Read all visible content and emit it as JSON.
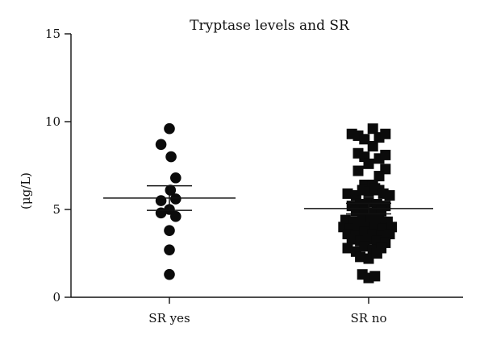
{
  "chart_data": {
    "type": "scatter",
    "title": "Tryptase levels and SR",
    "xlabel": "",
    "ylabel": "(μg/L)",
    "ylim": [
      0,
      15
    ],
    "yticks": [
      0,
      5,
      10,
      15
    ],
    "grid": false,
    "categories": [
      "SR yes",
      "SR no"
    ],
    "series": [
      {
        "category": "SR yes",
        "marker": "circle",
        "mean": 5.65,
        "error_upper": 6.35,
        "error_lower": 4.95,
        "points": [
          {
            "x": 0.0,
            "y": 9.6
          },
          {
            "x": -0.4,
            "y": 8.7
          },
          {
            "x": 0.08,
            "y": 8.0
          },
          {
            "x": 0.3,
            "y": 6.8
          },
          {
            "x": 0.05,
            "y": 6.1
          },
          {
            "x": -0.4,
            "y": 5.5
          },
          {
            "x": 0.3,
            "y": 5.6
          },
          {
            "x": 0.0,
            "y": 5.0
          },
          {
            "x": -0.4,
            "y": 4.8
          },
          {
            "x": 0.3,
            "y": 4.6
          },
          {
            "x": 0.0,
            "y": 3.8
          },
          {
            "x": 0.0,
            "y": 2.7
          },
          {
            "x": 0.0,
            "y": 1.3
          }
        ]
      },
      {
        "category": "SR no",
        "marker": "square",
        "mean": 5.05,
        "error_upper": 5.35,
        "error_lower": 4.75,
        "points": [
          {
            "x": -0.8,
            "y": 9.3
          },
          {
            "x": -0.5,
            "y": 9.2
          },
          {
            "x": -0.2,
            "y": 9.0
          },
          {
            "x": 0.2,
            "y": 9.6
          },
          {
            "x": 0.5,
            "y": 9.1
          },
          {
            "x": 0.8,
            "y": 9.3
          },
          {
            "x": -0.5,
            "y": 8.2
          },
          {
            "x": -0.2,
            "y": 8.0
          },
          {
            "x": 0.2,
            "y": 8.6
          },
          {
            "x": 0.5,
            "y": 7.9
          },
          {
            "x": 0.8,
            "y": 8.1
          },
          {
            "x": -0.5,
            "y": 7.2
          },
          {
            "x": 0.0,
            "y": 7.6
          },
          {
            "x": 0.8,
            "y": 7.3
          },
          {
            "x": 0.5,
            "y": 6.9
          },
          {
            "x": -0.2,
            "y": 6.4
          },
          {
            "x": 0.2,
            "y": 6.4
          },
          {
            "x": 0.5,
            "y": 6.1
          },
          {
            "x": -1.0,
            "y": 5.9
          },
          {
            "x": -0.6,
            "y": 5.8
          },
          {
            "x": -0.3,
            "y": 6.1
          },
          {
            "x": 0.0,
            "y": 6.0
          },
          {
            "x": 0.3,
            "y": 6.2
          },
          {
            "x": 0.7,
            "y": 5.9
          },
          {
            "x": 1.0,
            "y": 5.8
          },
          {
            "x": -0.8,
            "y": 5.2
          },
          {
            "x": -0.4,
            "y": 5.3
          },
          {
            "x": 0.0,
            "y": 5.4
          },
          {
            "x": 0.4,
            "y": 5.3
          },
          {
            "x": 0.8,
            "y": 5.2
          },
          {
            "x": -0.6,
            "y": 4.9
          },
          {
            "x": -0.2,
            "y": 4.9
          },
          {
            "x": 0.2,
            "y": 4.8
          },
          {
            "x": 0.6,
            "y": 4.9
          },
          {
            "x": -1.1,
            "y": 4.4
          },
          {
            "x": -0.7,
            "y": 4.3
          },
          {
            "x": -0.3,
            "y": 4.4
          },
          {
            "x": 0.1,
            "y": 4.5
          },
          {
            "x": 0.5,
            "y": 4.4
          },
          {
            "x": 0.9,
            "y": 4.3
          },
          {
            "x": -1.2,
            "y": 4.0
          },
          {
            "x": -0.9,
            "y": 3.9
          },
          {
            "x": -0.5,
            "y": 4.0
          },
          {
            "x": -0.1,
            "y": 4.0
          },
          {
            "x": 0.3,
            "y": 4.0
          },
          {
            "x": 0.7,
            "y": 3.9
          },
          {
            "x": 1.1,
            "y": 4.0
          },
          {
            "x": -1.0,
            "y": 3.6
          },
          {
            "x": -0.6,
            "y": 3.5
          },
          {
            "x": -0.2,
            "y": 3.7
          },
          {
            "x": 0.2,
            "y": 3.6
          },
          {
            "x": 0.6,
            "y": 3.5
          },
          {
            "x": 1.0,
            "y": 3.6
          },
          {
            "x": -0.8,
            "y": 3.3
          },
          {
            "x": -0.4,
            "y": 3.2
          },
          {
            "x": 0.0,
            "y": 3.3
          },
          {
            "x": 0.4,
            "y": 3.2
          },
          {
            "x": 0.8,
            "y": 3.1
          },
          {
            "x": -1.0,
            "y": 2.8
          },
          {
            "x": -0.6,
            "y": 2.6
          },
          {
            "x": -0.2,
            "y": 2.9
          },
          {
            "x": 0.2,
            "y": 2.7
          },
          {
            "x": 0.6,
            "y": 2.8
          },
          {
            "x": -0.4,
            "y": 2.3
          },
          {
            "x": 0.0,
            "y": 2.2
          },
          {
            "x": 0.4,
            "y": 2.5
          },
          {
            "x": -0.3,
            "y": 1.3
          },
          {
            "x": 0.0,
            "y": 1.1
          },
          {
            "x": 0.3,
            "y": 1.2
          }
        ]
      }
    ]
  }
}
